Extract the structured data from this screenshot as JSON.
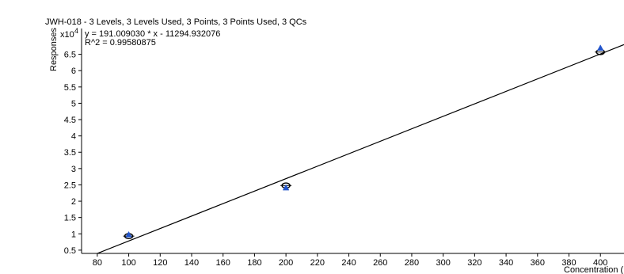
{
  "chart_data": {
    "type": "scatter",
    "title": "JWH-018 - 3 Levels, 3 Levels Used, 3 Points, 3 Points Used, 3 QCs",
    "equation": "y = 191.009030 * x  - 11294.932076",
    "r_squared": "R^2 = 0.99580875",
    "ylabel": "Responses",
    "y_multiplier_base": "x10",
    "y_multiplier_exp": "4",
    "xlabel": "Concentration (ng/ml)",
    "xlim": [
      70,
      415
    ],
    "ylim": [
      0.4,
      7.0
    ],
    "x_ticks": [
      80,
      100,
      120,
      140,
      160,
      180,
      200,
      220,
      240,
      260,
      280,
      300,
      320,
      340,
      360,
      380,
      400
    ],
    "y_ticks": [
      0.5,
      1,
      1.5,
      2,
      2.5,
      3,
      3.5,
      4,
      4.5,
      5,
      5.5,
      6,
      6.5
    ],
    "fit_line": {
      "slope": 191.00903,
      "intercept": -11294.932076,
      "scale": 10000,
      "color": "#000000"
    },
    "series": [
      {
        "marker": "circle",
        "color": "#000000",
        "points": [
          [
            100,
            0.93
          ],
          [
            200,
            2.48
          ],
          [
            400,
            6.57
          ]
        ]
      },
      {
        "marker": "triangle",
        "color": "#2255cc",
        "points": [
          [
            100,
            0.96
          ],
          [
            200,
            2.4
          ],
          [
            400,
            6.68
          ]
        ]
      }
    ]
  }
}
